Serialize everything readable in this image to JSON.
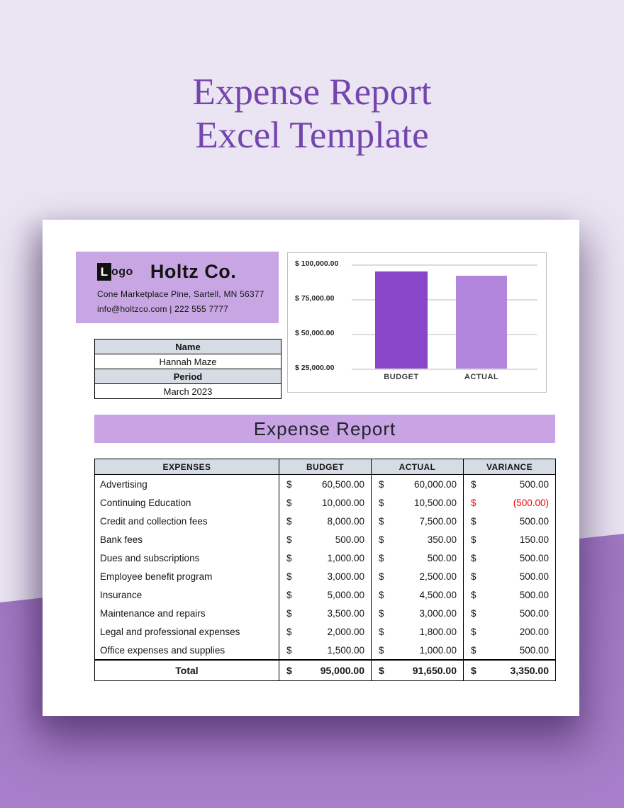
{
  "page_title": {
    "line1": "Expense Report",
    "line2": "Excel Template"
  },
  "company": {
    "logo_prefix": "L",
    "logo_suffix": "ogo",
    "name": "Holtz Co.",
    "address": "Cone Marketplace Pine, Sartell, MN 56377",
    "contact": "info@holtzco.com | 222 555 7777"
  },
  "info_panel": {
    "name_label": "Name",
    "name_value": "Hannah Maze",
    "period_label": "Period",
    "period_value": "March 2023"
  },
  "banner_title": "Expense Report",
  "chart_data": {
    "type": "bar",
    "categories": [
      "BUDGET",
      "ACTUAL"
    ],
    "values": [
      95000,
      91650
    ],
    "ylim": [
      25000,
      100000
    ],
    "ytick_values": [
      100000,
      75000,
      50000,
      25000
    ],
    "ytick_labels": [
      "$ 100,000.00",
      "$ 75,000.00",
      "$ 50,000.00",
      "$ 25,000.00"
    ],
    "bar_colors": [
      "#8a46c8",
      "#b286dc"
    ],
    "grid": true,
    "legend_position": "none",
    "title": ""
  },
  "expense_table": {
    "headers": [
      "EXPENSES",
      "BUDGET",
      "ACTUAL",
      "VARIANCE"
    ],
    "currency": "$",
    "rows": [
      {
        "expense": "Advertising",
        "budget": "60,500.00",
        "actual": "60,000.00",
        "variance": "500.00",
        "variance_negative": false
      },
      {
        "expense": "Continuing Education",
        "budget": "10,000.00",
        "actual": "10,500.00",
        "variance": "(500.00)",
        "variance_negative": true
      },
      {
        "expense": "Credit and collection fees",
        "budget": "8,000.00",
        "actual": "7,500.00",
        "variance": "500.00",
        "variance_negative": false
      },
      {
        "expense": "Bank fees",
        "budget": "500.00",
        "actual": "350.00",
        "variance": "150.00",
        "variance_negative": false
      },
      {
        "expense": "Dues and subscriptions",
        "budget": "1,000.00",
        "actual": "500.00",
        "variance": "500.00",
        "variance_negative": false
      },
      {
        "expense": "Employee benefit program",
        "budget": "3,000.00",
        "actual": "2,500.00",
        "variance": "500.00",
        "variance_negative": false
      },
      {
        "expense": "Insurance",
        "budget": "5,000.00",
        "actual": "4,500.00",
        "variance": "500.00",
        "variance_negative": false
      },
      {
        "expense": "Maintenance and repairs",
        "budget": "3,500.00",
        "actual": "3,000.00",
        "variance": "500.00",
        "variance_negative": false
      },
      {
        "expense": "Legal and professional expenses",
        "budget": "2,000.00",
        "actual": "1,800.00",
        "variance": "200.00",
        "variance_negative": false
      },
      {
        "expense": "Office expenses and supplies",
        "budget": "1,500.00",
        "actual": "1,000.00",
        "variance": "500.00",
        "variance_negative": false
      }
    ],
    "total": {
      "label": "Total",
      "budget": "95,000.00",
      "actual": "91,650.00",
      "variance": "3,350.00"
    }
  },
  "colors": {
    "background_top": "#ebe5f3",
    "background_bottom": "#a77fca",
    "title_purple": "#7445ae",
    "accent_purple": "#c8a5e4",
    "header_gray": "#d6dce4",
    "bar_budget": "#8a46c8",
    "bar_actual": "#b286dc",
    "negative_red": "#ff0000"
  }
}
